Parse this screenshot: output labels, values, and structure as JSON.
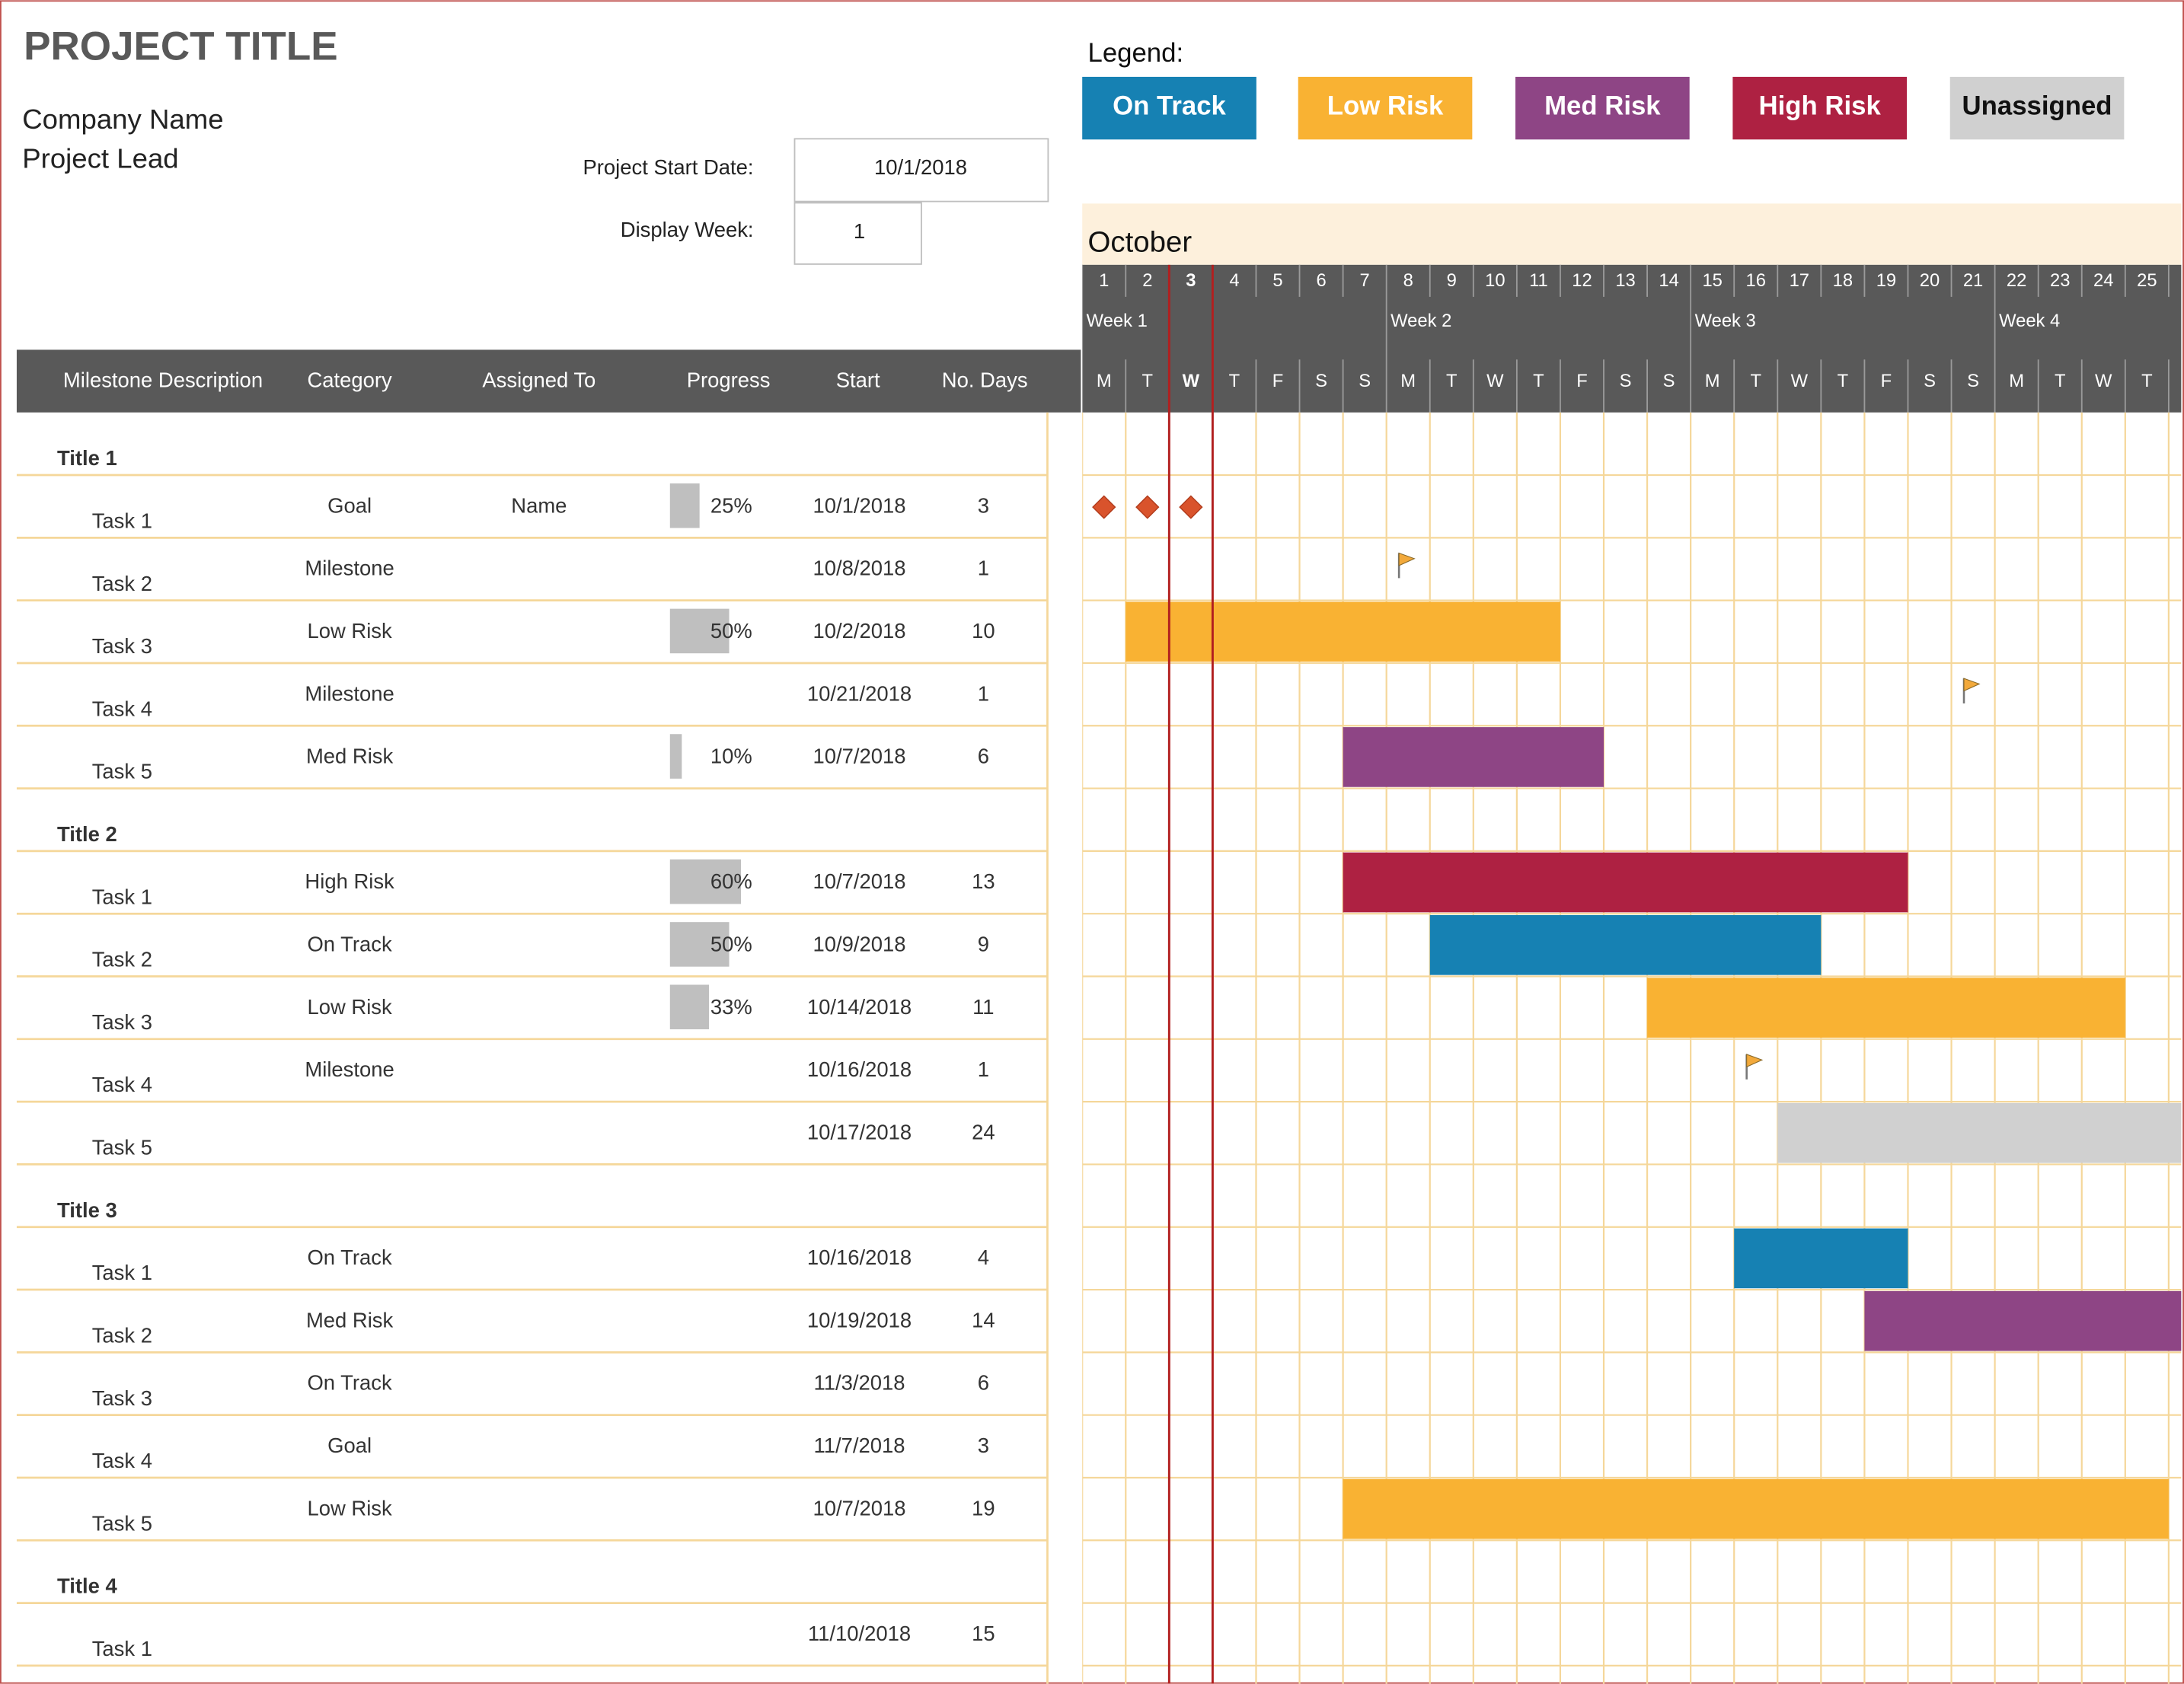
{
  "header": {
    "title": "PROJECT TITLE",
    "company": "Company Name",
    "lead": "Project Lead",
    "start_label": "Project Start Date:",
    "start_value": "10/1/2018",
    "week_label": "Display Week:",
    "week_value": "1"
  },
  "legend": {
    "title": "Legend:",
    "items": [
      {
        "label": "On Track",
        "color": "#1681b3"
      },
      {
        "label": "Low Risk",
        "color": "#f9b233"
      },
      {
        "label": "Med Risk",
        "color": "#8e4585"
      },
      {
        "label": "High Risk",
        "color": "#ae2142"
      },
      {
        "label": "Unassigned",
        "color": "#d0d0d0"
      }
    ]
  },
  "calendar": {
    "month": "October",
    "days": [
      1,
      2,
      3,
      4,
      5,
      6,
      7,
      8,
      9,
      10,
      11,
      12,
      13,
      14,
      15,
      16,
      17,
      18,
      19,
      20,
      21,
      22,
      23,
      24,
      25
    ],
    "weekdays": [
      "M",
      "T",
      "W",
      "T",
      "F",
      "S",
      "S",
      "M",
      "T",
      "W",
      "T",
      "F",
      "S",
      "S",
      "M",
      "T",
      "W",
      "T",
      "F",
      "S",
      "S",
      "M",
      "T",
      "W",
      "T"
    ],
    "weeks": [
      "Week 1",
      "Week 2",
      "Week 3",
      "Week 4"
    ]
  },
  "columns": [
    "Milestone Description",
    "Category",
    "Assigned To",
    "Progress",
    "Start",
    "No. Days"
  ],
  "groups": [
    {
      "title": "Title 1",
      "tasks": [
        {
          "name": "Task 1",
          "category": "Goal",
          "marker": "diamond",
          "assigned": "Name",
          "progress": {
            "value": 25,
            "label": "25%"
          },
          "start": "10/1/2018",
          "days": 3
        },
        {
          "name": "Task 2",
          "category": "Milestone",
          "marker": "flag",
          "start": "10/8/2018",
          "days": 1
        },
        {
          "name": "Task 3",
          "category": "Low Risk",
          "progress": {
            "value": 50,
            "label": "50%"
          },
          "start": "10/2/2018",
          "days": 10
        },
        {
          "name": "Task 4",
          "category": "Milestone",
          "marker": "flag",
          "start": "10/21/2018",
          "days": 1
        },
        {
          "name": "Task 5",
          "category": "Med Risk",
          "progress": {
            "value": 10,
            "label": "10%"
          },
          "start": "10/7/2018",
          "days": 6
        }
      ]
    },
    {
      "title": "Title 2",
      "tasks": [
        {
          "name": "Task 1",
          "category": "High Risk",
          "progress": {
            "value": 60,
            "label": "60%"
          },
          "start": "10/7/2018",
          "days": 13
        },
        {
          "name": "Task 2",
          "category": "On Track",
          "progress": {
            "value": 50,
            "label": "50%"
          },
          "start": "10/9/2018",
          "days": 9
        },
        {
          "name": "Task 3",
          "category": "Low Risk",
          "progress": {
            "value": 33,
            "label": "33%"
          },
          "start": "10/14/2018",
          "days": 11
        },
        {
          "name": "Task 4",
          "category": "Milestone",
          "marker": "flag",
          "start": "10/16/2018",
          "days": 1
        },
        {
          "name": "Task 5",
          "start": "10/17/2018",
          "days": 24
        }
      ]
    },
    {
      "title": "Title 3",
      "tasks": [
        {
          "name": "Task 1",
          "category": "On Track",
          "start": "10/16/2018",
          "days": 4
        },
        {
          "name": "Task 2",
          "category": "Med Risk",
          "start": "10/19/2018",
          "days": 14
        },
        {
          "name": "Task 3",
          "category": "On Track",
          "start": "11/3/2018",
          "days": 6
        },
        {
          "name": "Task 4",
          "category": "Goal",
          "marker": "diamond",
          "start": "11/7/2018",
          "days": 3
        },
        {
          "name": "Task 5",
          "category": "Low Risk",
          "start": "10/7/2018",
          "days": 19
        }
      ]
    },
    {
      "title": "Title 4",
      "tasks": [
        {
          "name": "Task 1",
          "start": "11/10/2018",
          "days": 15
        }
      ]
    }
  ]
}
